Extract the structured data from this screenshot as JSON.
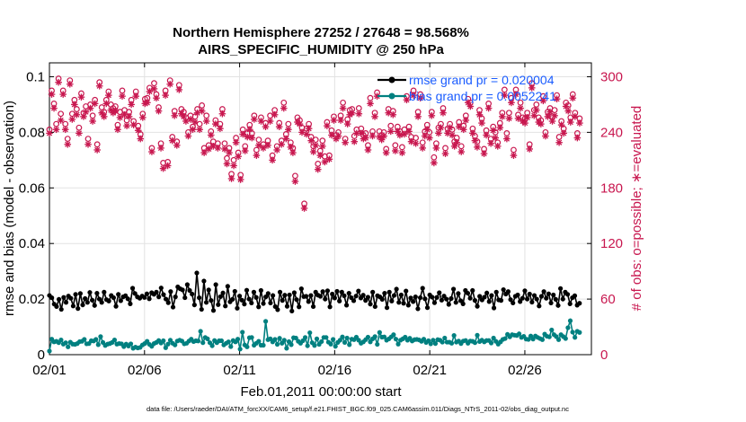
{
  "chart_data": {
    "type": "line",
    "title": "Northern Hemisphere 27252 / 27648 = 98.568%",
    "subtitle": "AIRS_SPECIFIC_HUMIDITY @ 250 hPa",
    "xlabel": "Feb.01,2011 00:00:00 start",
    "ylabel": "rmse and bias (model - observation)",
    "y2label": "# of obs: o=possible; ∗=evaluated",
    "xlim": [
      1,
      29.5
    ],
    "ylim": [
      0,
      0.105
    ],
    "y2lim": [
      0,
      315
    ],
    "x_ticks": [
      1,
      6,
      11,
      16,
      21,
      26
    ],
    "x_tick_labels": [
      "02/01",
      "02/06",
      "02/11",
      "02/16",
      "02/21",
      "02/26"
    ],
    "y_ticks": [
      0,
      0.02,
      0.04,
      0.06,
      0.08,
      0.1
    ],
    "y_tick_labels": [
      "0",
      "0.02",
      "0.04",
      "0.06",
      "0.08",
      "0.1"
    ],
    "y2_ticks": [
      0,
      60,
      120,
      180,
      240,
      300
    ],
    "y2_tick_labels": [
      "0",
      "60",
      "120",
      "180",
      "240",
      "300"
    ],
    "grid": true,
    "colors": {
      "rmse": "#000000",
      "bias": "#008080",
      "obs": "#c8174f",
      "legend_text": "#1a5cff"
    },
    "legend": {
      "position": "top-right",
      "entries": [
        "rmse grand pr = 0.020004",
        "bias grand pr = 0.0052241"
      ]
    },
    "series": [
      {
        "name": "rmse",
        "axis": "left",
        "values": [
          0.0213,
          0.0205,
          0.0182,
          0.0173,
          0.0199,
          0.0163,
          0.0206,
          0.0188,
          0.0211,
          0.0203,
          0.0175,
          0.0217,
          0.0166,
          0.022,
          0.0179,
          0.0202,
          0.0188,
          0.0224,
          0.0196,
          0.0177,
          0.0221,
          0.02,
          0.0188,
          0.0225,
          0.0198,
          0.0193,
          0.0213,
          0.0205,
          0.0174,
          0.0217,
          0.0194,
          0.0208,
          0.0212,
          0.0201,
          0.0183,
          0.0239,
          0.022,
          0.0208,
          0.0203,
          0.0211,
          0.0206,
          0.0219,
          0.0201,
          0.0223,
          0.0217,
          0.0225,
          0.0208,
          0.024,
          0.0216,
          0.02,
          0.0187,
          0.0227,
          0.0171,
          0.0208,
          0.0244,
          0.0237,
          0.0233,
          0.0205,
          0.0252,
          0.0231,
          0.0218,
          0.0179,
          0.0294,
          0.0205,
          0.0163,
          0.0265,
          0.0188,
          0.0233,
          0.0195,
          0.0159,
          0.0252,
          0.018,
          0.0209,
          0.0222,
          0.0175,
          0.0246,
          0.019,
          0.0199,
          0.0228,
          0.0167,
          0.0211,
          0.0196,
          0.0182,
          0.0232,
          0.02,
          0.0186,
          0.0225,
          0.0206,
          0.0172,
          0.0231,
          0.0184,
          0.0208,
          0.022,
          0.0186,
          0.0213,
          0.0173,
          0.0162,
          0.0225,
          0.0195,
          0.0214,
          0.0174,
          0.0215,
          0.0157,
          0.0223,
          0.0198,
          0.0172,
          0.0237,
          0.0209,
          0.021,
          0.0191,
          0.0213,
          0.0173,
          0.0225,
          0.0214,
          0.021,
          0.0227,
          0.02,
          0.023,
          0.0172,
          0.0218,
          0.0204,
          0.0228,
          0.0193,
          0.0225,
          0.0212,
          0.0178,
          0.0221,
          0.0205,
          0.0194,
          0.0211,
          0.0229,
          0.0204,
          0.0214,
          0.0195,
          0.0207,
          0.0182,
          0.0225,
          0.0173,
          0.0212,
          0.0208,
          0.0199,
          0.0221,
          0.0169,
          0.0225,
          0.0193,
          0.0213,
          0.0236,
          0.0188,
          0.0215,
          0.0185,
          0.0229,
          0.0178,
          0.0204,
          0.0191,
          0.0208,
          0.0165,
          0.0205,
          0.0239,
          0.0201,
          0.0169,
          0.0215,
          0.0207,
          0.0187,
          0.0206,
          0.0223,
          0.0196,
          0.0211,
          0.02,
          0.0181,
          0.0202,
          0.0236,
          0.0188,
          0.022,
          0.0194,
          0.0183,
          0.0231,
          0.0221,
          0.0203,
          0.0231,
          0.0195,
          0.0174,
          0.021,
          0.0197,
          0.0207,
          0.0222,
          0.0191,
          0.0213,
          0.0168,
          0.0225,
          0.0197,
          0.0195,
          0.0234,
          0.0218,
          0.0227,
          0.0198,
          0.0186,
          0.021,
          0.0215,
          0.0191,
          0.0203,
          0.023,
          0.02,
          0.0218,
          0.0189,
          0.0213,
          0.02,
          0.0175,
          0.021,
          0.0227,
          0.0203,
          0.0219,
          0.0186,
          0.0215,
          0.0199,
          0.0177,
          0.0238,
          0.02,
          0.0225,
          0.0217,
          0.0183,
          0.0205,
          0.0212,
          0.0178,
          0.0185
        ]
      },
      {
        "name": "bias",
        "axis": "left",
        "values": [
          0.0013,
          0.0056,
          0.0046,
          0.0048,
          0.0043,
          0.0053,
          0.0038,
          0.0043,
          0.0028,
          0.0045,
          0.0038,
          0.0037,
          0.004,
          0.0047,
          0.0048,
          0.0055,
          0.0039,
          0.004,
          0.005,
          0.0049,
          0.0055,
          0.0036,
          0.0065,
          0.0044,
          0.0033,
          0.0038,
          0.004,
          0.0044,
          0.0053,
          0.0038,
          0.004,
          0.0039,
          0.0029,
          0.0038,
          0.0031,
          0.0039,
          0.0023,
          0.0027,
          0.0024,
          0.0026,
          0.0035,
          0.004,
          0.0048,
          0.0037,
          0.003,
          0.004,
          0.0044,
          0.0051,
          0.0042,
          0.005,
          0.0025,
          0.0038,
          0.0052,
          0.0041,
          0.0035,
          0.0049,
          0.0052,
          0.0049,
          0.0039,
          0.0041,
          0.0049,
          0.0056,
          0.0047,
          0.005,
          0.0049,
          0.0084,
          0.0043,
          0.0062,
          0.0057,
          0.0043,
          0.0032,
          0.0051,
          0.0043,
          0.005,
          0.005,
          0.0035,
          0.0041,
          0.0046,
          0.0029,
          0.0051,
          0.0046,
          0.0056,
          0.002,
          0.0081,
          0.0035,
          0.0028,
          0.0061,
          0.0062,
          0.0034,
          0.0041,
          0.0048,
          0.0034,
          0.0034,
          0.012,
          0.0054,
          0.0057,
          0.0046,
          0.0055,
          0.0037,
          0.0059,
          0.0041,
          0.0052,
          0.0023,
          0.0047,
          0.0036,
          0.0061,
          0.006,
          0.0048,
          0.0041,
          0.005,
          0.0062,
          0.0032,
          0.0079,
          0.0043,
          0.0033,
          0.0057,
          0.0037,
          0.0047,
          0.0062,
          0.0062,
          0.0045,
          0.0038,
          0.0055,
          0.003,
          0.0044,
          0.0052,
          0.0064,
          0.0044,
          0.006,
          0.0036,
          0.0056,
          0.0054,
          0.0063,
          0.0052,
          0.0041,
          0.0046,
          0.0054,
          0.0063,
          0.0046,
          0.0057,
          0.0065,
          0.0037,
          0.008,
          0.0063,
          0.0064,
          0.0052,
          0.0057,
          0.0064,
          0.0072,
          0.0056,
          0.0038,
          0.0052,
          0.0057,
          0.0063,
          0.0052,
          0.0059,
          0.0049,
          0.0054,
          0.0055,
          0.0053,
          0.0048,
          0.0056,
          0.0044,
          0.005,
          0.0039,
          0.0052,
          0.004,
          0.0054,
          0.0052,
          0.0045,
          0.006,
          0.0045,
          0.0045,
          0.0041,
          0.0069,
          0.0045,
          0.0049,
          0.004,
          0.0049,
          0.0051,
          0.0041,
          0.0049,
          0.0048,
          0.0043,
          0.007,
          0.0047,
          0.0052,
          0.0046,
          0.0051,
          0.0051,
          0.0042,
          0.006,
          0.0048,
          0.0038,
          0.0046,
          0.0055,
          0.0058,
          0.0073,
          0.0064,
          0.0072,
          0.007,
          0.0069,
          0.0075,
          0.0062,
          0.0066,
          0.0056,
          0.0055,
          0.0067,
          0.0056,
          0.0067,
          0.0062,
          0.0058,
          0.0054,
          0.0074,
          0.0066,
          0.0064,
          0.0089,
          0.0072,
          0.0065,
          0.0054,
          0.0072,
          0.0065,
          0.0058,
          0.0097,
          0.0122,
          0.0081,
          0.0062,
          0.0084,
          0.008
        ]
      },
      {
        "name": "possible",
        "axis": "right",
        "marker": "o",
        "values": [
          243,
          285,
          271,
          249,
          298,
          260,
          285,
          249,
          233,
          296,
          260,
          275,
          265,
          245,
          282,
          261,
          268,
          233,
          270,
          258,
          275,
          227,
          294,
          267,
          262,
          275,
          284,
          270,
          266,
          268,
          248,
          262,
          285,
          264,
          253,
          262,
          275,
          252,
          284,
          247,
          238,
          260,
          276,
          277,
          288,
          223,
          293,
          281,
          267,
          228,
          207,
          285,
          208,
          296,
          235,
          263,
          230,
          291,
          265,
          262,
          256,
          240,
          258,
          246,
          257,
          265,
          249,
          269,
          223,
          258,
          226,
          241,
          230,
          253,
          228,
          249,
          265,
          228,
          212,
          223,
          195,
          210,
          234,
          218,
          194,
          243,
          225,
          239,
          248,
          239,
          258,
          221,
          232,
          256,
          227,
          250,
          231,
          258,
          215,
          264,
          225,
          250,
          231,
          272,
          238,
          249,
          229,
          223,
          193,
          256,
          253,
          245,
          163,
          244,
          249,
          235,
          225,
          232,
          206,
          220,
          231,
          214,
          251,
          215,
          242,
          257,
          237,
          240,
          258,
          272,
          233,
          254,
          264,
          265,
          236,
          243,
          266,
          244,
          237,
          239,
          226,
          277,
          241,
          261,
          283,
          241,
          237,
          240,
          222,
          265,
          247,
          263,
          226,
          246,
          241,
          224,
          243,
          279,
          246,
          235,
          285,
          234,
          262,
          281,
          229,
          241,
          248,
          240,
          262,
          213,
          228,
          245,
          249,
          266,
          223,
          244,
          249,
          243,
          230,
          234,
          251,
          225,
          247,
          258,
          276,
          272,
          244,
          236,
          230,
          264,
          255,
          222,
          242,
          271,
          233,
          246,
          240,
          229,
          250,
          261,
          286,
          239,
          261,
          277,
          221,
          286,
          259,
          272,
          256,
          255,
          261,
          227,
          293,
          264,
          270,
          256,
          253,
          279,
          240,
          262,
          266,
          257,
          264,
          280,
          235,
          252,
          244,
          272,
          269,
          256,
          281,
          261,
          239,
          255
        ]
      },
      {
        "name": "evaluated",
        "axis": "right",
        "marker": "*",
        "values": [
          239,
          281,
          266,
          243,
          294,
          253,
          281,
          243,
          227,
          292,
          254,
          270,
          259,
          239,
          278,
          257,
          262,
          227,
          266,
          252,
          271,
          221,
          290,
          261,
          257,
          271,
          280,
          264,
          261,
          263,
          243,
          256,
          279,
          259,
          247,
          257,
          270,
          248,
          279,
          242,
          233,
          256,
          271,
          272,
          284,
          219,
          287,
          277,
          263,
          223,
          201,
          280,
          204,
          292,
          231,
          258,
          226,
          286,
          260,
          257,
          252,
          236,
          254,
          243,
          251,
          261,
          243,
          263,
          218,
          252,
          222,
          237,
          225,
          249,
          223,
          244,
          260,
          222,
          206,
          218,
          190,
          204,
          229,
          214,
          189,
          238,
          220,
          235,
          243,
          234,
          254,
          215,
          226,
          252,
          223,
          246,
          226,
          252,
          210,
          259,
          221,
          246,
          227,
          266,
          233,
          243,
          224,
          218,
          187,
          251,
          249,
          240,
          158,
          238,
          244,
          231,
          219,
          226,
          200,
          215,
          225,
          208,
          247,
          211,
          237,
          253,
          233,
          236,
          253,
          266,
          229,
          249,
          259,
          261,
          230,
          239,
          260,
          239,
          233,
          234,
          221,
          271,
          236,
          257,
          279,
          235,
          232,
          236,
          218,
          261,
          241,
          259,
          220,
          241,
          237,
          218,
          238,
          275,
          241,
          230,
          280,
          228,
          257,
          277,
          223,
          236,
          243,
          234,
          258,
          207,
          223,
          239,
          245,
          261,
          217,
          239,
          245,
          237,
          225,
          229,
          246,
          219,
          243,
          253,
          272,
          268,
          239,
          231,
          224,
          259,
          250,
          217,
          237,
          266,
          228,
          242,
          234,
          225,
          245,
          257,
          280,
          233,
          255,
          272,
          215,
          281,
          255,
          266,
          252,
          250,
          256,
          222,
          288,
          258,
          264,
          251,
          249,
          274,
          236,
          257,
          262,
          252,
          258,
          276,
          229,
          248,
          239,
          268,
          263,
          251,
          277,
          257,
          234,
          250
        ]
      }
    ]
  },
  "footer": "data file: /Users/raeder/DAI/ATM_forcXX/CAM6_setup/f.e21.FHIST_BGC.f09_025.CAM6assim.011/Diags_NTrS_2011-02/obs_diag_output.nc"
}
